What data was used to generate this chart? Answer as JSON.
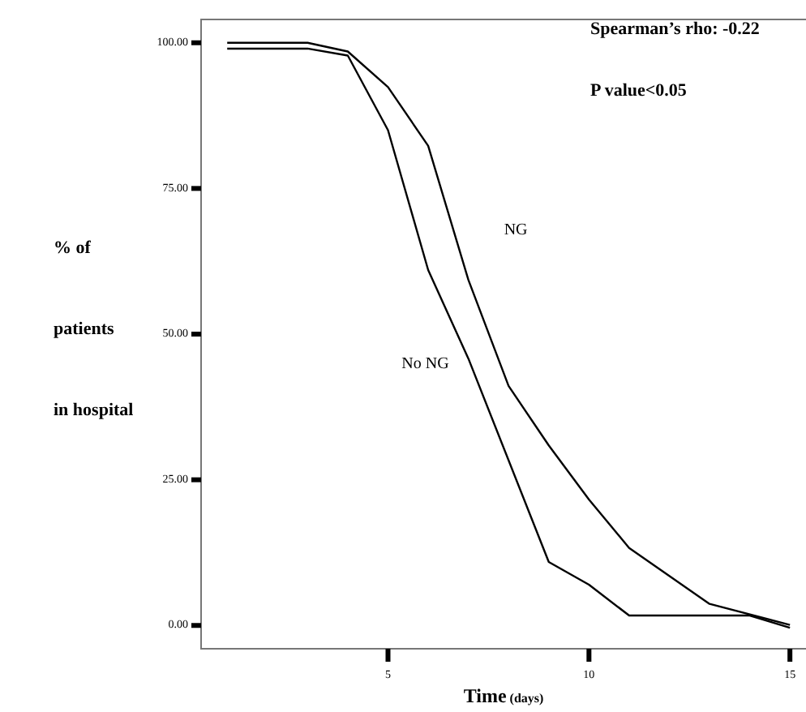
{
  "chart_data": {
    "type": "line",
    "xlabel": "Time (days)",
    "ylabel": "% of\npatients\nin hospital",
    "annotations": [
      "Spearman’s rho: -0.22",
      "P value<0.05"
    ],
    "xlim": [
      0.35,
      15.4
    ],
    "ylim": [
      -4,
      104
    ],
    "xticks": [
      5,
      10,
      15
    ],
    "yticks": [
      {
        "value": 0,
        "label": "0.00"
      },
      {
        "value": 25,
        "label": "25.00"
      },
      {
        "value": 50,
        "label": "50.00"
      },
      {
        "value": 75,
        "label": "75.00"
      },
      {
        "value": 100,
        "label": "100.00"
      }
    ],
    "grid": false,
    "series": [
      {
        "name": "NG",
        "color": "#000000",
        "x": [
          1,
          3,
          4,
          5,
          6,
          7,
          8,
          9,
          10,
          11,
          13,
          15
        ],
        "values": [
          100,
          100,
          98.5,
          92.4,
          82.3,
          59.3,
          41.1,
          30.9,
          21.6,
          13.3,
          3.7,
          0.1
        ]
      },
      {
        "name": "No NG",
        "color": "#000000",
        "x": [
          1,
          3,
          4,
          5,
          6,
          7,
          9,
          10,
          11,
          14,
          15
        ],
        "values": [
          99,
          99,
          97.8,
          85,
          61,
          45.8,
          10.9,
          7,
          1.7,
          1.7,
          -0.4
        ]
      }
    ]
  }
}
